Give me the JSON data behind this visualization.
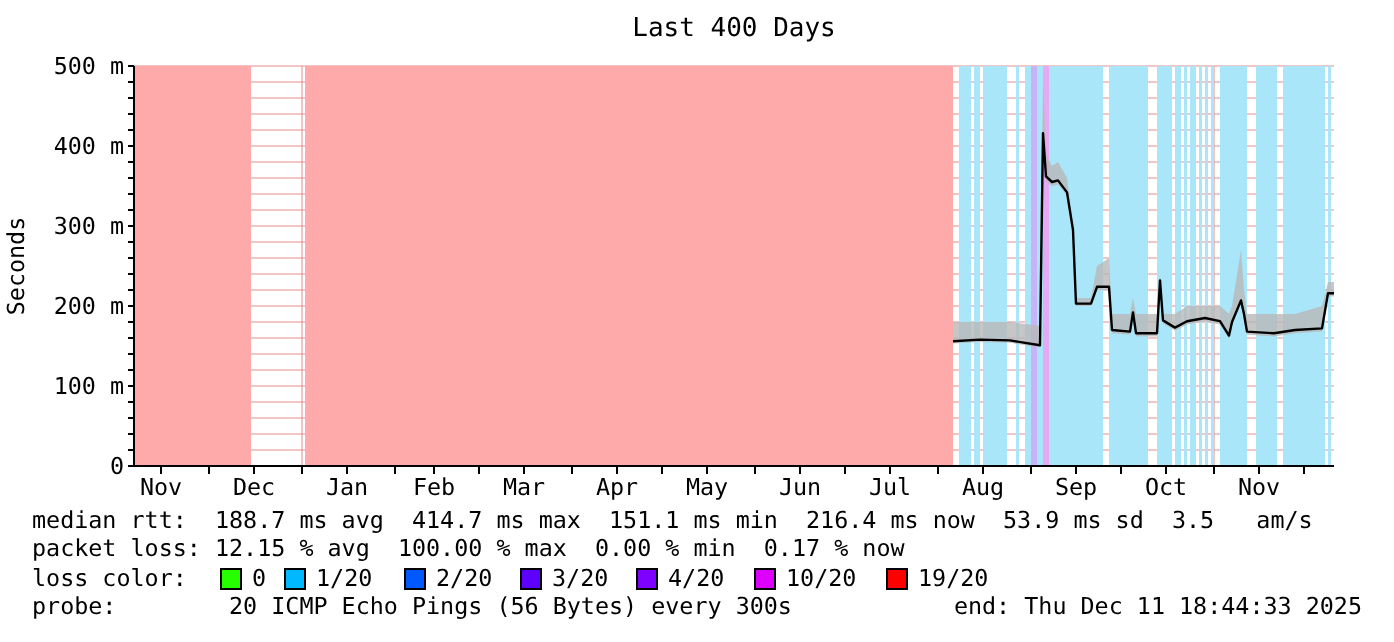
{
  "chart_data": {
    "type": "line",
    "title": "Last 400 Days",
    "ylabel": "Seconds",
    "xlim": [
      "2024-11-06",
      "2025-12-11"
    ],
    "xticks": [
      {
        "value": "2024-11-15",
        "label": "Nov"
      },
      {
        "value": "2024-12-01",
        "label": null
      },
      {
        "value": "2024-12-16",
        "label": "Dec"
      },
      {
        "value": "2025-01-01",
        "label": null
      },
      {
        "value": "2025-01-16",
        "label": "Jan"
      },
      {
        "value": "2025-02-01",
        "label": null
      },
      {
        "value": "2025-02-14",
        "label": "Feb"
      },
      {
        "value": "2025-03-01",
        "label": null
      },
      {
        "value": "2025-03-16",
        "label": "Mar"
      },
      {
        "value": "2025-04-01",
        "label": null
      },
      {
        "value": "2025-04-16",
        "label": "Apr"
      },
      {
        "value": "2025-05-01",
        "label": null
      },
      {
        "value": "2025-05-16",
        "label": "May"
      },
      {
        "value": "2025-06-01",
        "label": null
      },
      {
        "value": "2025-06-16",
        "label": "Jun"
      },
      {
        "value": "2025-07-01",
        "label": null
      },
      {
        "value": "2025-07-16",
        "label": "Jul"
      },
      {
        "value": "2025-08-01",
        "label": null
      },
      {
        "value": "2025-08-16",
        "label": "Aug"
      },
      {
        "value": "2025-09-01",
        "label": null
      },
      {
        "value": "2025-09-16",
        "label": "Sep"
      },
      {
        "value": "2025-10-01",
        "label": null
      },
      {
        "value": "2025-10-16",
        "label": "Oct"
      },
      {
        "value": "2025-11-01",
        "label": null
      },
      {
        "value": "2025-11-16",
        "label": "Nov"
      },
      {
        "value": "2025-12-01",
        "label": null
      }
    ],
    "ylim": [
      0,
      500
    ],
    "yticks": [
      0,
      {
        "value": 20,
        "label": null
      },
      {
        "value": 40,
        "label": null
      },
      {
        "value": 60,
        "label": null
      },
      {
        "value": 80,
        "label": null
      },
      {
        "value": 100,
        "label": "100 m"
      },
      {
        "value": 120,
        "label": null
      },
      {
        "value": 140,
        "label": null
      },
      {
        "value": 160,
        "label": null
      },
      {
        "value": 180,
        "label": null
      },
      {
        "value": 200,
        "label": "200 m"
      },
      {
        "value": 220,
        "label": null
      },
      {
        "value": 240,
        "label": null
      },
      {
        "value": 260,
        "label": null
      },
      {
        "value": 280,
        "label": null
      },
      {
        "value": 300,
        "label": "300 m"
      },
      {
        "value": 320,
        "label": null
      },
      {
        "value": 340,
        "label": null
      },
      {
        "value": 360,
        "label": null
      },
      {
        "value": 380,
        "label": null
      },
      {
        "value": 400,
        "label": "400 m"
      },
      {
        "value": 420,
        "label": null
      },
      {
        "value": 440,
        "label": null
      },
      {
        "value": 460,
        "label": null
      },
      {
        "value": 480,
        "label": null
      },
      {
        "value": 500,
        "label": "500 m"
      }
    ],
    "grid": true,
    "x": [
      "2025-08-06",
      "2025-08-15",
      "2025-08-25",
      "2025-09-04",
      "2025-09-05",
      "2025-09-06",
      "2025-09-08",
      "2025-09-10",
      "2025-09-13",
      "2025-09-15",
      "2025-09-16",
      "2025-09-21",
      "2025-09-23",
      "2025-09-27",
      "2025-09-28",
      "2025-10-04",
      "2025-10-05",
      "2025-10-06",
      "2025-10-13",
      "2025-10-14",
      "2025-10-15",
      "2025-10-19",
      "2025-10-23",
      "2025-10-29",
      "2025-11-03",
      "2025-11-06",
      "2025-11-07",
      "2025-11-10",
      "2025-11-11",
      "2025-11-12",
      "2025-11-21",
      "2025-11-28",
      "2025-12-07",
      "2025-12-09",
      "2025-12-11"
    ],
    "series": [
      {
        "color": "#000000",
        "values": [
          156,
          158,
          157,
          151,
          416,
          362,
          355,
          357,
          342,
          295,
          203,
          203,
          224,
          224,
          170,
          168,
          192,
          166,
          166,
          232,
          182,
          173,
          181,
          185,
          181,
          163,
          180,
          207,
          190,
          168,
          166,
          170,
          172,
          216,
          216
        ],
        "lower": [
          153,
          155,
          154,
          148,
          410,
          356,
          350,
          352,
          338,
          290,
          200,
          200,
          220,
          220,
          166,
          164,
          188,
          162,
          162,
          228,
          178,
          169,
          177,
          181,
          177,
          159,
          176,
          203,
          186,
          164,
          162,
          166,
          168,
          212,
          212
        ],
        "upper": [
          180,
          180,
          180,
          175,
          480,
          390,
          375,
          380,
          360,
          300,
          210,
          210,
          250,
          260,
          190,
          190,
          210,
          190,
          190,
          240,
          190,
          190,
          200,
          200,
          200,
          190,
          200,
          270,
          220,
          190,
          190,
          190,
          200,
          230,
          230
        ]
      }
    ],
    "bands": [
      {
        "axis": "x",
        "from": "2024-11-06",
        "to": "2024-12-15",
        "color": "#ffaaaa"
      },
      {
        "axis": "x",
        "from": "2025-01-02",
        "to": "2025-08-06",
        "color": "#ffaaaa"
      },
      {
        "axis": "x",
        "from": "2025-08-08",
        "to": "2025-08-12",
        "color": "#aae6fa"
      },
      {
        "axis": "x",
        "from": "2025-08-13",
        "to": "2025-08-15",
        "color": "#aae6fa"
      },
      {
        "axis": "x",
        "from": "2025-08-16",
        "to": "2025-08-24",
        "color": "#aae6fa"
      },
      {
        "axis": "x",
        "from": "2025-08-27",
        "to": "2025-08-28",
        "color": "#aae6fa"
      },
      {
        "axis": "x",
        "from": "2025-08-30",
        "to": "2025-09-01",
        "color": "#aae6fa"
      },
      {
        "axis": "x",
        "from": "2025-09-01",
        "to": "2025-09-03",
        "color": "#c8b4f4"
      },
      {
        "axis": "x",
        "from": "2025-09-03",
        "to": "2025-09-05",
        "color": "#aae6fa"
      },
      {
        "axis": "x",
        "from": "2025-09-05",
        "to": "2025-09-07",
        "color": "#e6aaf4"
      },
      {
        "axis": "x",
        "from": "2025-09-07",
        "to": "2025-09-25",
        "color": "#aae6fa"
      },
      {
        "axis": "x",
        "from": "2025-09-27",
        "to": "2025-10-10",
        "color": "#aae6fa"
      },
      {
        "axis": "x",
        "from": "2025-10-13",
        "to": "2025-10-18",
        "color": "#aae6fa"
      },
      {
        "axis": "x",
        "from": "2025-10-19",
        "to": "2025-10-21",
        "color": "#aae6fa"
      },
      {
        "axis": "x",
        "from": "2025-10-22",
        "to": "2025-10-23",
        "color": "#aae6fa"
      },
      {
        "axis": "x",
        "from": "2025-10-24",
        "to": "2025-10-26",
        "color": "#aae6fa"
      },
      {
        "axis": "x",
        "from": "2025-10-27",
        "to": "2025-10-28",
        "color": "#aae6fa"
      },
      {
        "axis": "x",
        "from": "2025-10-29",
        "to": "2025-10-30",
        "color": "#aae6fa"
      },
      {
        "axis": "x",
        "from": "2025-10-31",
        "to": "2025-11-01",
        "color": "#aae6fa"
      },
      {
        "axis": "x",
        "from": "2025-11-03",
        "to": "2025-11-12",
        "color": "#aae6fa"
      },
      {
        "axis": "x",
        "from": "2025-11-15",
        "to": "2025-11-22",
        "color": "#aae6fa"
      },
      {
        "axis": "x",
        "from": "2025-11-24",
        "to": "2025-12-08",
        "color": "#aae6fa"
      },
      {
        "axis": "x",
        "from": "2025-12-09",
        "to": "2025-12-10",
        "color": "#aae6fa"
      }
    ],
    "annotations": [
      "median rtt:  188.7 ms avg  414.7 ms max  151.1 ms min  216.4 ms now  53.9 ms sd  3.5   am/s",
      "packet loss: 12.15 % avg  100.00 % max  0.00 % min  0.17 % now",
      "loss color:",
      "0",
      "1/20",
      "2/20",
      "3/20",
      "4/20",
      "10/20",
      "19/20",
      "probe:        20 ICMP Echo Pings (56 Bytes) every 300s",
      "end: Thu Dec 11 18:44:33 2025"
    ]
  }
}
